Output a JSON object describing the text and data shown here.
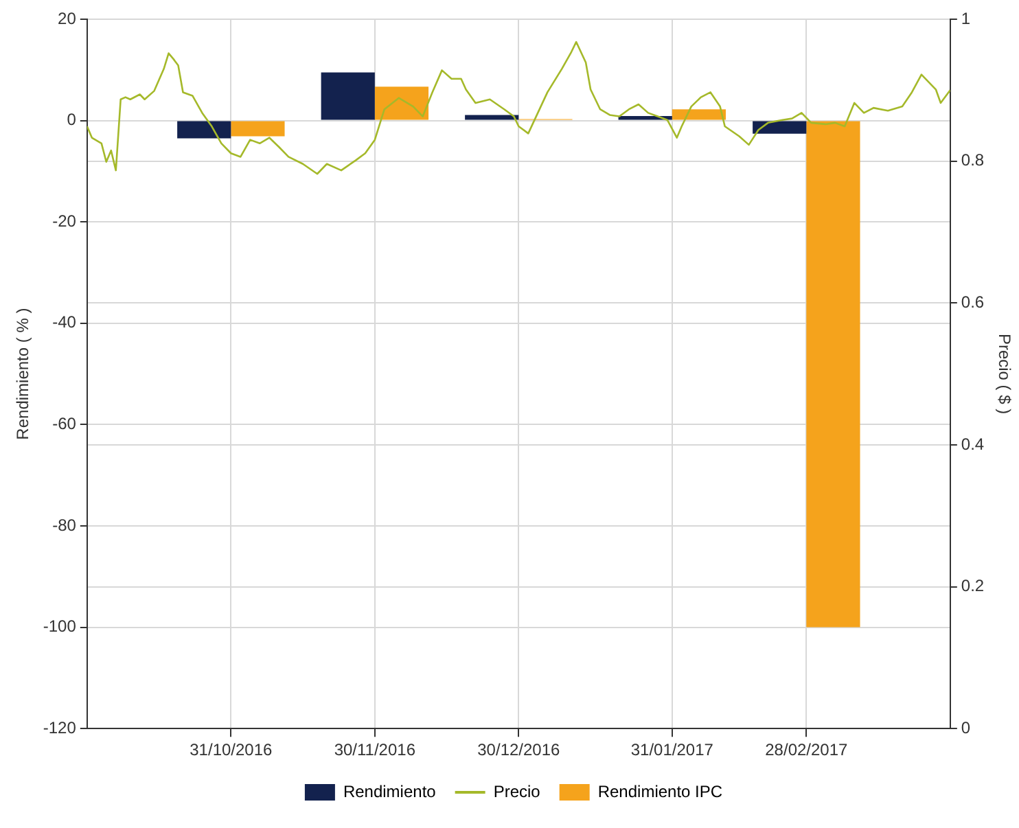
{
  "chart_data": {
    "type": "bar",
    "ylabel": "Rendimiento ( % )",
    "y2label": "Precio ( $ )",
    "x": [
      "2016-10-31",
      "2016-11-30",
      "2016-12-30",
      "2017-01-31",
      "2017-02-28"
    ],
    "series": [
      {
        "name": "Rendimiento",
        "color": "#13224e",
        "values": [
          -3.5,
          9.5,
          1.1,
          0.9,
          -2.6
        ]
      },
      {
        "name": "Precio",
        "type": "line",
        "axis": "y2",
        "color": "#a5b92a",
        "marker": "none",
        "x": [
          "2016-10-01",
          "2016-10-02",
          "2016-10-04",
          "2016-10-05",
          "2016-10-06",
          "2016-10-07",
          "2016-10-08",
          "2016-10-09",
          "2016-10-10",
          "2016-10-12",
          "2016-10-13",
          "2016-10-15",
          "2016-10-17",
          "2016-10-18",
          "2016-10-19",
          "2016-10-20",
          "2016-10-21",
          "2016-10-23",
          "2016-10-25",
          "2016-10-27",
          "2016-10-29",
          "2016-10-31",
          "2016-11-02",
          "2016-11-04",
          "2016-11-06",
          "2016-11-08",
          "2016-11-10",
          "2016-11-12",
          "2016-11-15",
          "2016-11-18",
          "2016-11-20",
          "2016-11-23",
          "2016-11-26",
          "2016-11-28",
          "2016-11-30",
          "2016-12-02",
          "2016-12-05",
          "2016-12-08",
          "2016-12-10",
          "2016-12-12",
          "2016-12-14",
          "2016-12-16",
          "2016-12-18",
          "2016-12-19",
          "2016-12-21",
          "2016-12-24",
          "2016-12-27",
          "2016-12-29",
          "2016-12-30",
          "2017-01-01",
          "2017-01-03",
          "2017-01-05",
          "2017-01-08",
          "2017-01-10",
          "2017-01-11",
          "2017-01-13",
          "2017-01-14",
          "2017-01-16",
          "2017-01-18",
          "2017-01-20",
          "2017-01-22",
          "2017-01-24",
          "2017-01-26",
          "2017-01-28",
          "2017-01-30",
          "2017-02-01",
          "2017-02-02",
          "2017-02-04",
          "2017-02-06",
          "2017-02-08",
          "2017-02-10",
          "2017-02-11",
          "2017-02-14",
          "2017-02-16",
          "2017-02-18",
          "2017-02-20",
          "2017-02-23",
          "2017-02-25",
          "2017-02-27",
          "2017-03-01",
          "2017-03-04",
          "2017-03-06",
          "2017-03-08",
          "2017-03-10",
          "2017-03-12",
          "2017-03-14",
          "2017-03-17",
          "2017-03-20",
          "2017-03-22",
          "2017-03-24",
          "2017-03-27",
          "2017-03-28",
          "2017-03-30"
        ],
        "values": [
          0.849,
          0.833,
          0.825,
          0.799,
          0.815,
          0.787,
          0.887,
          0.89,
          0.887,
          0.894,
          0.887,
          0.899,
          0.93,
          0.952,
          0.944,
          0.935,
          0.897,
          0.892,
          0.868,
          0.849,
          0.825,
          0.811,
          0.806,
          0.83,
          0.825,
          0.833,
          0.82,
          0.806,
          0.796,
          0.782,
          0.796,
          0.787,
          0.801,
          0.811,
          0.83,
          0.873,
          0.889,
          0.877,
          0.863,
          0.897,
          0.928,
          0.916,
          0.916,
          0.901,
          0.882,
          0.887,
          0.873,
          0.863,
          0.849,
          0.839,
          0.868,
          0.897,
          0.93,
          0.954,
          0.968,
          0.939,
          0.901,
          0.873,
          0.865,
          0.863,
          0.873,
          0.88,
          0.868,
          0.863,
          0.858,
          0.833,
          0.849,
          0.877,
          0.89,
          0.897,
          0.877,
          0.849,
          0.835,
          0.823,
          0.844,
          0.854,
          0.858,
          0.86,
          0.868,
          0.854,
          0.852,
          0.854,
          0.849,
          0.882,
          0.868,
          0.875,
          0.871,
          0.877,
          0.897,
          0.922,
          0.901,
          0.882,
          0.9
        ]
      },
      {
        "name": "Rendimiento IPC",
        "color": "#f5a31c",
        "values": [
          -3.1,
          6.7,
          0.3,
          2.2,
          -100
        ]
      }
    ],
    "xlim": [
      "2016-10-01",
      "2017-03-30"
    ],
    "xticks": [
      {
        "value": "2016-10-31",
        "label": "31/10/2016"
      },
      {
        "value": "2016-11-30",
        "label": "30/11/2016"
      },
      {
        "value": "2016-12-30",
        "label": "30/12/2016"
      },
      {
        "value": "2017-01-31",
        "label": "31/01/2017"
      },
      {
        "value": "2017-02-28",
        "label": "28/02/2017"
      }
    ],
    "ylim": [
      -120,
      20
    ],
    "yticks": [
      -120,
      -100,
      -80,
      -60,
      -40,
      -20,
      0,
      20
    ],
    "y2lim": [
      0,
      1
    ],
    "y2ticks": [
      0,
      0.2,
      0.4,
      0.6,
      0.8,
      1
    ],
    "grid": true,
    "legend": "bottom"
  }
}
